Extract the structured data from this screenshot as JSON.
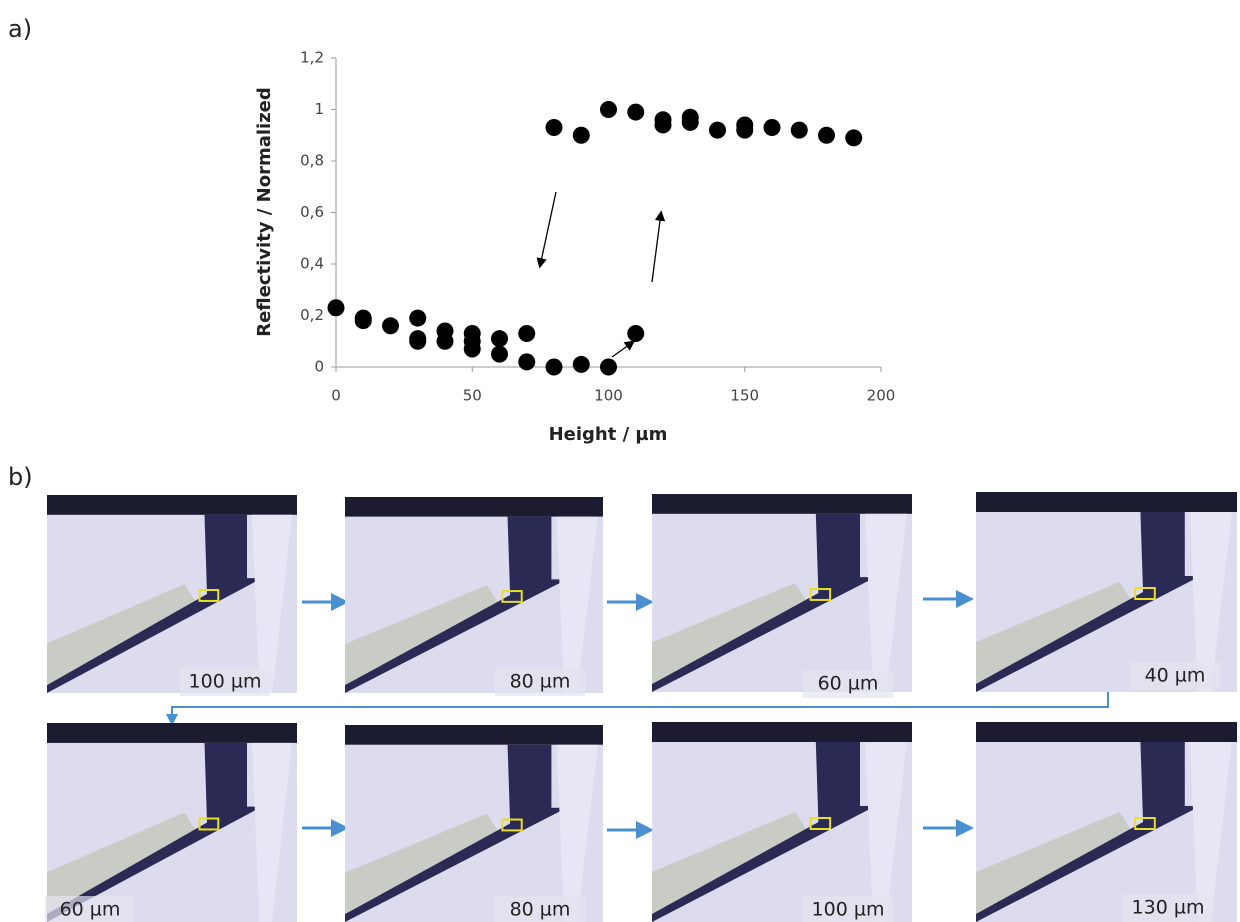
{
  "panel_labels": [
    "a)",
    "b)"
  ],
  "chart_data": {
    "type": "scatter",
    "x_label": "Height / µm",
    "y_label": "Reflectivity / Normalized",
    "x": [
      0,
      10,
      10,
      20,
      30,
      30,
      30,
      40,
      40,
      50,
      50,
      50,
      60,
      60,
      70,
      70,
      80,
      90,
      100,
      110,
      80,
      90,
      100,
      110,
      120,
      120,
      130,
      130,
      140,
      150,
      150,
      160,
      170,
      180,
      190
    ],
    "values": [
      0.23,
      0.19,
      0.18,
      0.16,
      0.19,
      0.11,
      0.1,
      0.14,
      0.1,
      0.13,
      0.1,
      0.07,
      0.11,
      0.05,
      0.13,
      0.02,
      0,
      0.01,
      0,
      0.13,
      0.93,
      0.9,
      1.0,
      0.99,
      0.96,
      0.94,
      0.97,
      0.95,
      0.92,
      0.94,
      0.92,
      0.93,
      0.92,
      0.9,
      0.89
    ],
    "color": "#000000",
    "xlim": [
      0,
      200
    ],
    "xticks": [
      0,
      50,
      100,
      150,
      200
    ],
    "ylim": [
      0,
      1.2
    ],
    "yticks": [
      0,
      {
        "value": 0.2,
        "label": "0,2"
      },
      {
        "value": 0.4,
        "label": "0,4"
      },
      {
        "value": 0.6,
        "label": "0,6"
      },
      {
        "value": 0.8,
        "label": "0,8"
      },
      1,
      {
        "value": 1.2,
        "label": "1,2"
      }
    ],
    "grid": false
  },
  "images": {
    "labels": [
      "100 µm",
      "80 µm",
      "60 µm",
      "40 µm",
      "60 µm",
      "80 µm",
      "100 µm",
      "130 µm"
    ]
  }
}
